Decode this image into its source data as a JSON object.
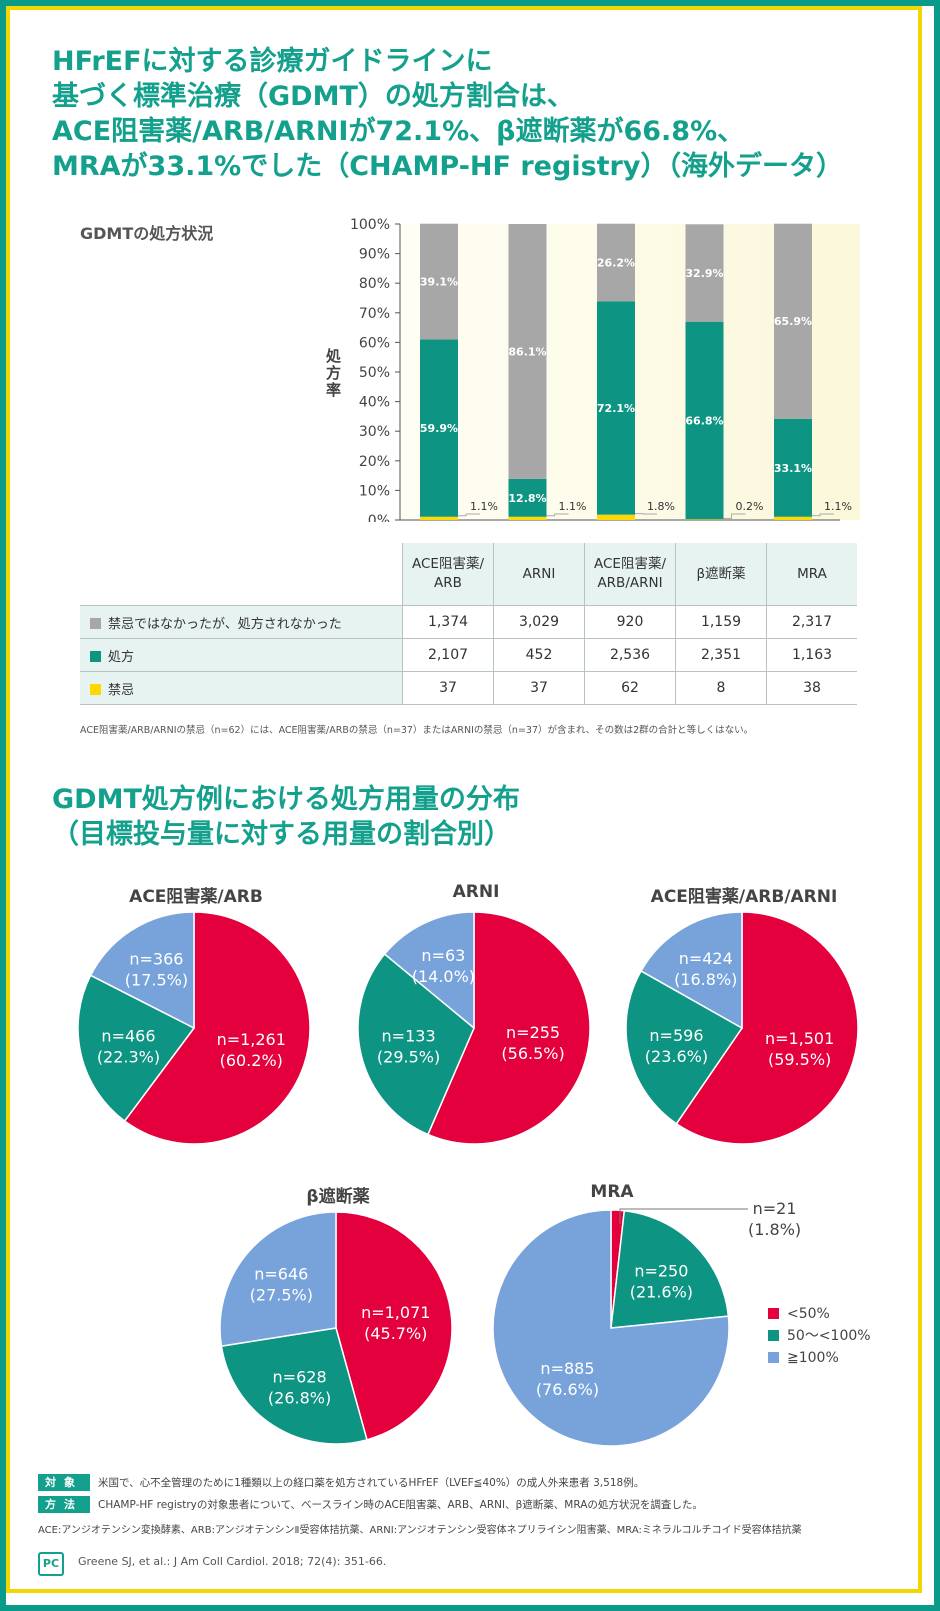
{
  "headline": [
    "HFrEFに対する診療ガイドラインに",
    "基づく標準治療（GDMT）の処方割合は、",
    "ACE阻害薬/ARB/ARNIが72.1%、β遮断薬が66.8%、",
    "MRAが33.1%でした（CHAMP-HF registry）（海外データ）"
  ],
  "colors": {
    "teal": "#0e9482",
    "gray": "#a7a7a7",
    "yellow": "#ffd800",
    "red": "#e4003c",
    "blue": "#78a3da"
  },
  "chart_data": [
    {
      "type": "bar",
      "stacked": true,
      "title": "GDMTの処方状況",
      "ylabel": "処方率",
      "ylim": [
        0,
        100
      ],
      "yticks": [
        "0%",
        "10%",
        "20%",
        "30%",
        "40%",
        "50%",
        "60%",
        "70%",
        "80%",
        "90%",
        "100%"
      ],
      "categories": [
        "ACE阻害薬/ARB",
        "ARNI",
        "ACE阻害薬/ARB/ARNI",
        "β遮断薬",
        "MRA"
      ],
      "series": [
        {
          "name": "禁忌",
          "color": "#ffd800",
          "values": [
            1.1,
            1.1,
            1.8,
            0.2,
            1.1
          ],
          "labels": [
            "1.1%",
            "1.1%",
            "1.8%",
            "0.2%",
            "1.1%"
          ]
        },
        {
          "name": "処方",
          "color": "#0e9482",
          "values": [
            59.9,
            12.8,
            72.1,
            66.8,
            33.1
          ],
          "labels": [
            "59.9%",
            "12.8%",
            "72.1%",
            "66.8%",
            "33.1%"
          ]
        },
        {
          "name": "禁忌ではなかったが、処方されなかった",
          "color": "#a7a7a7",
          "values": [
            39.1,
            86.1,
            26.2,
            32.9,
            65.9
          ],
          "labels": [
            "39.1%",
            "86.1%",
            "26.2%",
            "32.9%",
            "65.9%"
          ]
        }
      ]
    },
    {
      "type": "pie",
      "title": "ACE阻害薬/ARB",
      "slices": [
        {
          "name": "<50%",
          "value": 60.2,
          "n": "n=1,261",
          "pct": "(60.2%)"
        },
        {
          "name": "50～<100%",
          "value": 22.3,
          "n": "n=466",
          "pct": "(22.3%)"
        },
        {
          "name": "≧100%",
          "value": 17.5,
          "n": "n=366",
          "pct": "(17.5%)"
        }
      ]
    },
    {
      "type": "pie",
      "title": "ARNI",
      "slices": [
        {
          "name": "<50%",
          "value": 56.5,
          "n": "n=255",
          "pct": "(56.5%)"
        },
        {
          "name": "50～<100%",
          "value": 29.5,
          "n": "n=133",
          "pct": "(29.5%)"
        },
        {
          "name": "≧100%",
          "value": 14.0,
          "n": "n=63",
          "pct": "(14.0%)"
        }
      ]
    },
    {
      "type": "pie",
      "title": "ACE阻害薬/ARB/ARNI",
      "slices": [
        {
          "name": "<50%",
          "value": 59.5,
          "n": "n=1,501",
          "pct": "(59.5%)"
        },
        {
          "name": "50～<100%",
          "value": 23.6,
          "n": "n=596",
          "pct": "(23.6%)"
        },
        {
          "name": "≧100%",
          "value": 16.8,
          "n": "n=424",
          "pct": "(16.8%)"
        }
      ]
    },
    {
      "type": "pie",
      "title": "β遮断薬",
      "slices": [
        {
          "name": "<50%",
          "value": 45.7,
          "n": "n=1,071",
          "pct": "(45.7%)"
        },
        {
          "name": "50～<100%",
          "value": 26.8,
          "n": "n=628",
          "pct": "(26.8%)"
        },
        {
          "name": "≧100%",
          "value": 27.5,
          "n": "n=646",
          "pct": "(27.5%)"
        }
      ]
    },
    {
      "type": "pie",
      "title": "MRA",
      "slices": [
        {
          "name": "<50%",
          "value": 1.8,
          "n": "n=21",
          "pct": "(1.8%)"
        },
        {
          "name": "50～<100%",
          "value": 21.6,
          "n": "n=250",
          "pct": "(21.6%)"
        },
        {
          "name": "≧100%",
          "value": 76.6,
          "n": "n=885",
          "pct": "(76.6%)"
        }
      ]
    }
  ],
  "table": {
    "columns": [
      "ACE阻害薬/\nARB",
      "ARNI",
      "ACE阻害薬/\nARB/ARNI",
      "β遮断薬",
      "MRA"
    ],
    "rows": [
      {
        "label": "禁忌ではなかったが、処方されなかった",
        "color": "#a7a7a7",
        "values": [
          "1,374",
          "3,029",
          "920",
          "1,159",
          "2,317"
        ]
      },
      {
        "label": "処方",
        "color": "#0e9482",
        "values": [
          "2,107",
          "452",
          "2,536",
          "2,351",
          "1,163"
        ]
      },
      {
        "label": "禁忌",
        "color": "#ffd800",
        "values": [
          "37",
          "37",
          "62",
          "8",
          "38"
        ]
      }
    ]
  },
  "footnote": "ACE阻害薬/ARB/ARNIの禁忌（n=62）には、ACE阻害薬/ARBの禁忌（n=37）またはARNIの禁忌（n=37）が含まれ、その数は2群の合計と等しくはない。",
  "headline2": [
    "GDMT処方例における処方用量の分布",
    "（目標投与量に対する用量の割合別）"
  ],
  "legend": [
    {
      "label": "<50%",
      "color": "#e4003c"
    },
    {
      "label": "50～<100%",
      "color": "#0e9482"
    },
    {
      "label": "≧100%",
      "color": "#78a3da"
    }
  ],
  "method": [
    {
      "tag": "対象",
      "text": "米国で、心不全管理のために1種類以上の経口薬を処方されているHFrEF（LVEF≦40%）の成人外来患者 3,518例。"
    },
    {
      "tag": "方法",
      "text": "CHAMP-HF registryの対象患者について、ベースライン時のACE阻害薬、ARB、ARNI、β遮断薬、MRAの処方状況を調査した。"
    }
  ],
  "abbreviations": "ACE:アンジオテンシン変換酵素、ARB:アンジオテンシンⅡ受容体拮抗薬、ARNI:アンジオテンシン受容体ネプリライシン阻害薬、MRA:ミネラルコルチコイド受容体拮抗薬",
  "logo_text": "PC",
  "citation": "Greene SJ, et al.: J Am Coll Cardiol. 2018; 72(4): 351-66."
}
